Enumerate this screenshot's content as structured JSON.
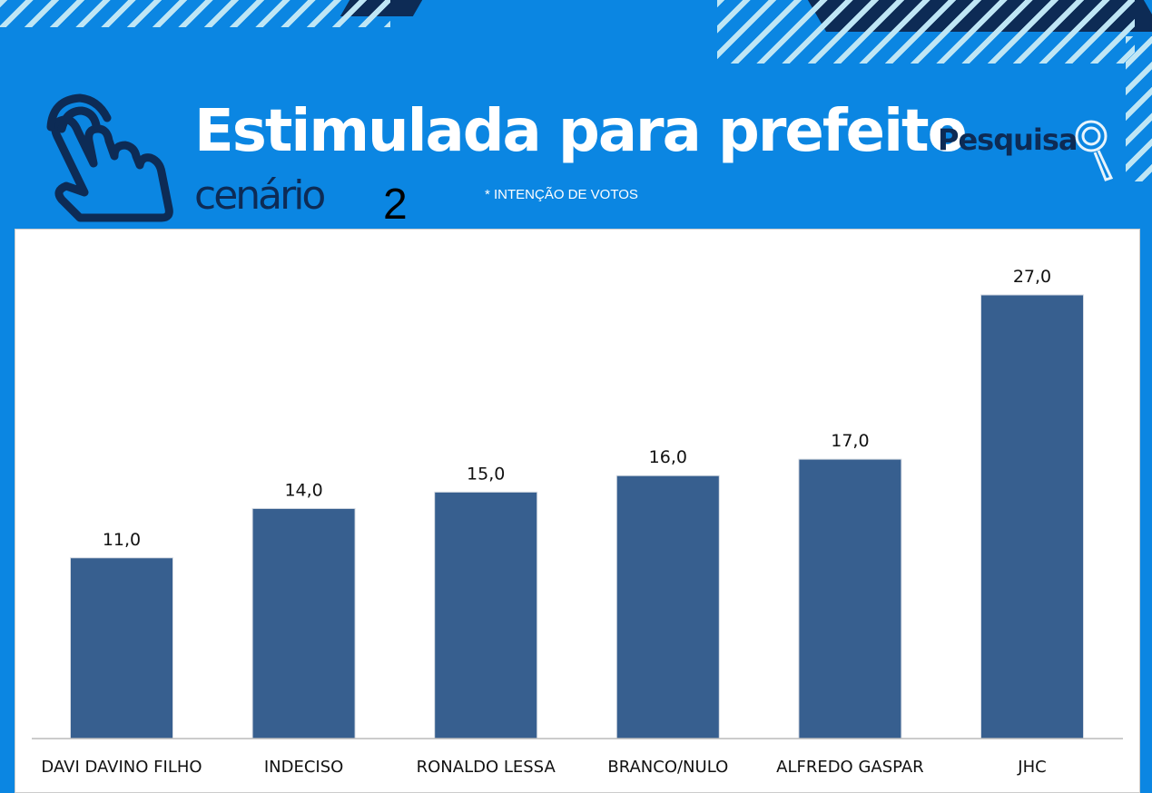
{
  "header": {
    "title": "Estimulada para prefeito",
    "subtitle": "cenário",
    "scenario_number": "2",
    "note": "*  INTENÇÃO DE VOTOS",
    "brand": "Pesquisa"
  },
  "colors": {
    "background": "#0b86e2",
    "bar": "#375f8f",
    "dark": "#0d2b55"
  },
  "chart_data": {
    "type": "bar",
    "title": "Estimulada para prefeito",
    "categories": [
      "DAVI DAVINO FILHO",
      "INDECISO",
      "RONALDO LESSA",
      "BRANCO/NULO",
      "ALFREDO GASPAR",
      "JHC"
    ],
    "values": [
      11.0,
      14.0,
      15.0,
      16.0,
      17.0,
      27.0
    ],
    "labels": [
      "11,0",
      "14,0",
      "15,0",
      "16,0",
      "17,0",
      "27,0"
    ],
    "xlabel": "",
    "ylabel": "",
    "ylim": [
      0,
      27
    ],
    "grid": false
  }
}
